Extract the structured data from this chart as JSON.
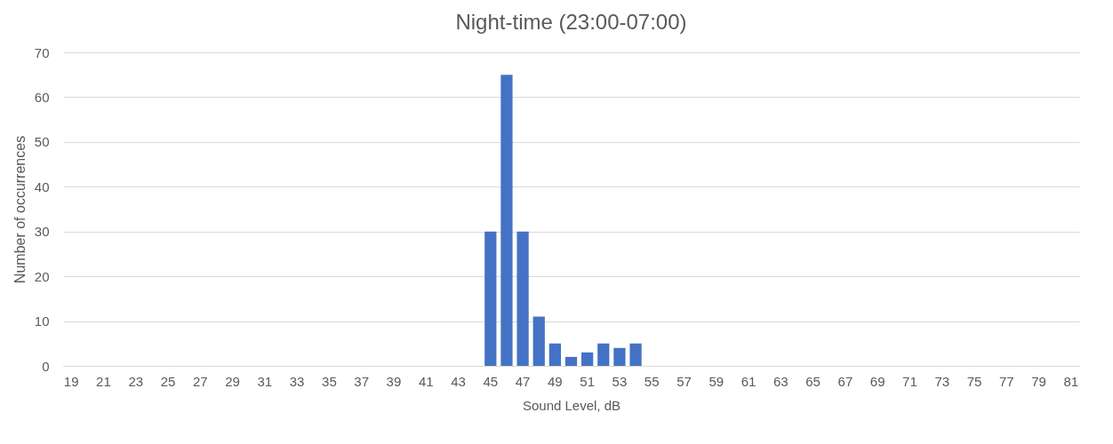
{
  "chart_data": {
    "type": "bar",
    "title": "Night-time (23:00-07:00)",
    "xlabel": "Sound Level, dB",
    "ylabel": "Number of occurrences",
    "categories": [
      "19",
      null,
      "21",
      null,
      "23",
      null,
      "25",
      null,
      "27",
      null,
      "29",
      null,
      "31",
      null,
      "33",
      null,
      "35",
      null,
      "37",
      null,
      "39",
      null,
      "41",
      null,
      "43",
      null,
      "45",
      null,
      "47",
      null,
      "49",
      null,
      "51",
      null,
      "53",
      null,
      "55",
      null,
      "57",
      null,
      "59",
      null,
      "61",
      null,
      "63",
      null,
      "65",
      null,
      "67",
      null,
      "69",
      null,
      "71",
      null,
      "73",
      null,
      "75",
      null,
      "77",
      null,
      "79",
      null,
      "81"
    ],
    "values": [
      0,
      0,
      0,
      0,
      0,
      0,
      0,
      0,
      0,
      0,
      0,
      0,
      0,
      0,
      0,
      0,
      0,
      0,
      0,
      0,
      0,
      0,
      0,
      0,
      0,
      0,
      30,
      65,
      30,
      11,
      5,
      2,
      3,
      5,
      4,
      5,
      0,
      0,
      0,
      0,
      0,
      0,
      0,
      0,
      0,
      0,
      0,
      0,
      0,
      0,
      0,
      0,
      0,
      0,
      0,
      0,
      0,
      0,
      0,
      0,
      0,
      0,
      0
    ],
    "color": "#4472c4",
    "ylim": [
      0,
      70
    ],
    "yticks": [
      0,
      10,
      20,
      30,
      40,
      50,
      60,
      70
    ],
    "grid": "y"
  }
}
